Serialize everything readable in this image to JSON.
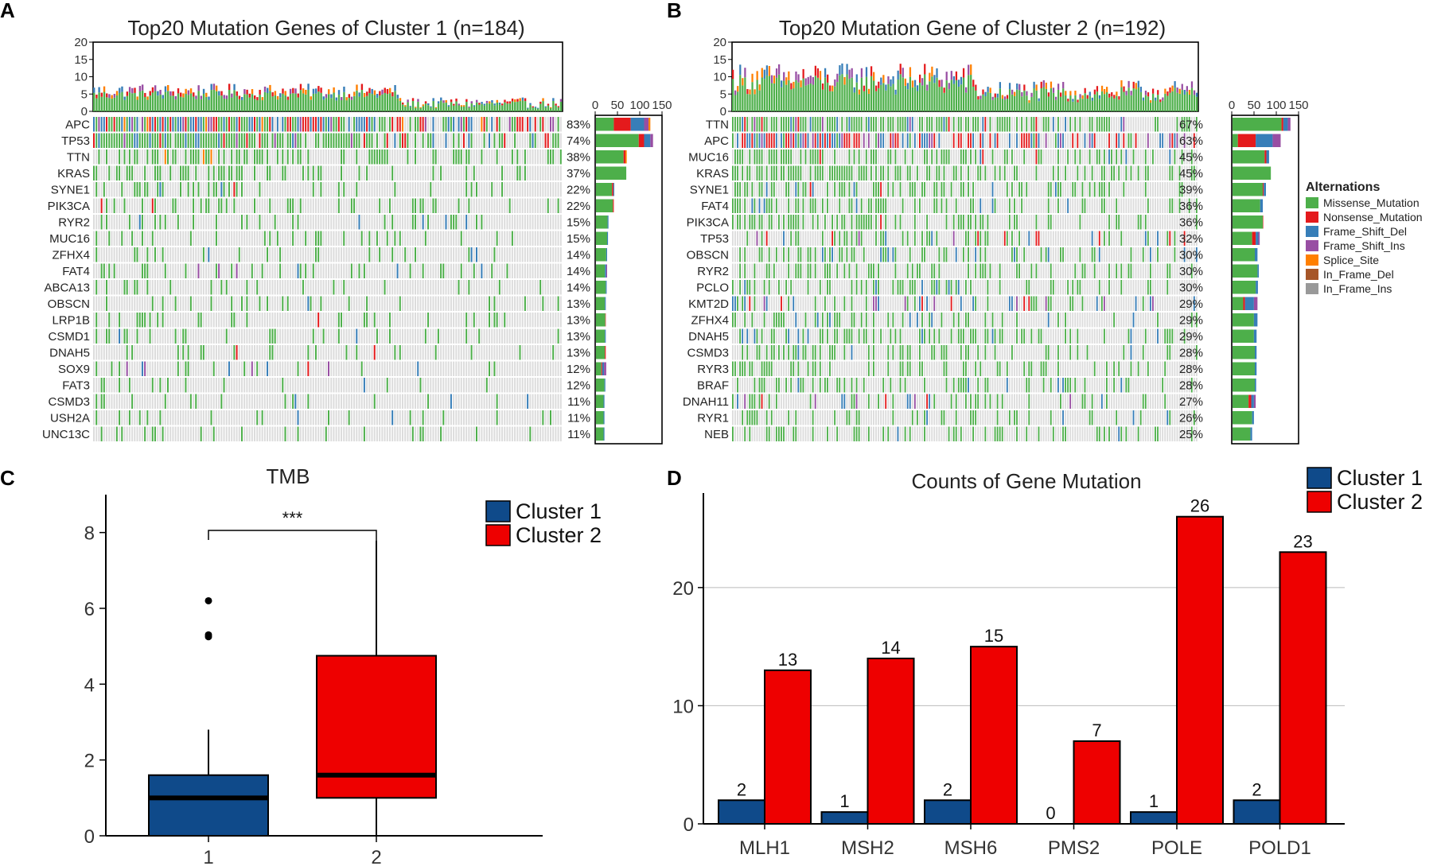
{
  "panels": {
    "a": "A",
    "b": "B",
    "c": "C",
    "d": "D"
  },
  "colors": {
    "Missense_Mutation": "#4DAF4A",
    "Nonsense_Mutation": "#E41A1C",
    "Frame_Shift_Del": "#377EB8",
    "Frame_Shift_Ins": "#984EA3",
    "Splice_Site": "#FF7F00",
    "In_Frame_Del": "#A65628",
    "In_Frame_Ins": "#999999",
    "cluster1": "#0F4A8A",
    "cluster2": "#EE0000"
  },
  "chart_data": [
    {
      "type": "oncoplot",
      "panel": "A",
      "title": "Top20 Mutation Genes of Cluster 1 (n=184)",
      "n_samples": 184,
      "tmb_axis": {
        "ticks": [
          "0",
          "5",
          "10",
          "15",
          "20"
        ],
        "max": 20
      },
      "side_axis": {
        "ticks": [
          "0",
          "50",
          "100",
          "150"
        ],
        "max": 150
      },
      "genes": [
        "APC",
        "TP53",
        "TTN",
        "KRAS",
        "SYNE1",
        "PIK3CA",
        "RYR2",
        "MUC16",
        "ZFHX4",
        "FAT4",
        "ABCA13",
        "OBSCN",
        "LRP1B",
        "CSMD1",
        "DNAH5",
        "SOX9",
        "FAT3",
        "CSMD3",
        "USH2A",
        "UNC13C"
      ],
      "percents": [
        "83%",
        "74%",
        "38%",
        "37%",
        "22%",
        "22%",
        "15%",
        "15%",
        "14%",
        "14%",
        "14%",
        "13%",
        "13%",
        "13%",
        "13%",
        "12%",
        "12%",
        "11%",
        "11%",
        "11%"
      ],
      "side_counts": [
        {
          "Missense_Mutation": 40,
          "Nonsense_Mutation": 38,
          "Frame_Shift_Del": 30,
          "Frame_Shift_Ins": 10,
          "Splice_Site": 4
        },
        {
          "Missense_Mutation": 96,
          "Nonsense_Mutation": 12,
          "Frame_Shift_Del": 14,
          "Frame_Shift_Ins": 6
        },
        {
          "Missense_Mutation": 62,
          "Nonsense_Mutation": 4,
          "Splice_Site": 3
        },
        {
          "Missense_Mutation": 68
        },
        {
          "Missense_Mutation": 36,
          "Nonsense_Mutation": 3,
          "Frame_Shift_Del": 2
        },
        {
          "Missense_Mutation": 38,
          "Nonsense_Mutation": 2
        },
        {
          "Missense_Mutation": 26,
          "Frame_Shift_Del": 2
        },
        {
          "Missense_Mutation": 25,
          "Frame_Shift_Del": 2
        },
        {
          "Missense_Mutation": 23,
          "Frame_Shift_Del": 2
        },
        {
          "Missense_Mutation": 20,
          "Frame_Shift_Del": 3,
          "Frame_Shift_Ins": 2
        },
        {
          "Missense_Mutation": 22,
          "Frame_Shift_Del": 2
        },
        {
          "Missense_Mutation": 20,
          "Frame_Shift_Del": 2
        },
        {
          "Missense_Mutation": 21,
          "Nonsense_Mutation": 1
        },
        {
          "Missense_Mutation": 20,
          "Frame_Shift_Del": 2
        },
        {
          "Missense_Mutation": 20,
          "Nonsense_Mutation": 2
        },
        {
          "Missense_Mutation": 12,
          "Frame_Shift_Ins": 5,
          "Frame_Shift_Del": 4,
          "Nonsense_Mutation": 2
        },
        {
          "Missense_Mutation": 19,
          "Frame_Shift_Del": 2
        },
        {
          "Missense_Mutation": 17,
          "Frame_Shift_Del": 2
        },
        {
          "Missense_Mutation": 17,
          "Frame_Shift_Del": 2
        },
        {
          "Missense_Mutation": 17,
          "Frame_Shift_Del": 2
        }
      ]
    },
    {
      "type": "oncoplot",
      "panel": "B",
      "title": "Top20 Mutation Gene of Cluster 2 (n=192)",
      "n_samples": 192,
      "tmb_axis": {
        "ticks": [
          "0",
          "5",
          "10",
          "15",
          "20"
        ],
        "max": 20
      },
      "side_axis": {
        "ticks": [
          "0",
          "50",
          "100",
          "150"
        ],
        "max": 150
      },
      "genes": [
        "TTN",
        "APC",
        "MUC16",
        "KRAS",
        "SYNE1",
        "FAT4",
        "PIK3CA",
        "TP53",
        "OBSCN",
        "RYR2",
        "PCLO",
        "KMT2D",
        "ZFHX4",
        "DNAH5",
        "CSMD3",
        "RYR3",
        "BRAF",
        "DNAH11",
        "RYR1",
        "NEB"
      ],
      "percents": [
        "67%",
        "63%",
        "45%",
        "45%",
        "39%",
        "36%",
        "36%",
        "32%",
        "30%",
        "30%",
        "30%",
        "29%",
        "29%",
        "29%",
        "28%",
        "28%",
        "28%",
        "27%",
        "26%",
        "25%"
      ],
      "side_counts": [
        {
          "Missense_Mutation": 110,
          "Frame_Shift_Del": 10,
          "Frame_Shift_Ins": 6,
          "Nonsense_Mutation": 4
        },
        {
          "Missense_Mutation": 12,
          "Nonsense_Mutation": 40,
          "Frame_Shift_Del": 38,
          "Frame_Shift_Ins": 18
        },
        {
          "Missense_Mutation": 72,
          "Frame_Shift_Del": 6,
          "Nonsense_Mutation": 4
        },
        {
          "Missense_Mutation": 86
        },
        {
          "Missense_Mutation": 68,
          "Frame_Shift_Del": 5,
          "Nonsense_Mutation": 2
        },
        {
          "Missense_Mutation": 62,
          "Frame_Shift_Del": 6
        },
        {
          "Missense_Mutation": 68,
          "Nonsense_Mutation": 1
        },
        {
          "Missense_Mutation": 44,
          "Nonsense_Mutation": 8,
          "Frame_Shift_Del": 6,
          "Frame_Shift_Ins": 3
        },
        {
          "Missense_Mutation": 50,
          "Frame_Shift_Del": 6
        },
        {
          "Missense_Mutation": 56,
          "Frame_Shift_Del": 3
        },
        {
          "Missense_Mutation": 52,
          "Frame_Shift_Del": 5
        },
        {
          "Missense_Mutation": 24,
          "Frame_Shift_Del": 20,
          "Frame_Shift_Ins": 8,
          "Nonsense_Mutation": 4
        },
        {
          "Missense_Mutation": 48,
          "Frame_Shift_Del": 8
        },
        {
          "Missense_Mutation": 48,
          "Frame_Shift_Del": 6
        },
        {
          "Missense_Mutation": 50,
          "Frame_Shift_Del": 4
        },
        {
          "Missense_Mutation": 50,
          "Frame_Shift_Del": 4
        },
        {
          "Missense_Mutation": 50,
          "Frame_Shift_Del": 3
        },
        {
          "Missense_Mutation": 36,
          "Nonsense_Mutation": 6,
          "Frame_Shift_Del": 6,
          "Frame_Shift_Ins": 4
        },
        {
          "Missense_Mutation": 44,
          "Frame_Shift_Del": 4
        },
        {
          "Missense_Mutation": 40,
          "Frame_Shift_Del": 4
        }
      ],
      "legend_title": "Alternations",
      "legend_items": [
        "Missense_Mutation",
        "Nonsense_Mutation",
        "Frame_Shift_Del",
        "Frame_Shift_Ins",
        "Splice_Site",
        "In_Frame_Del",
        "In_Frame_Ins"
      ]
    },
    {
      "type": "boxplot",
      "panel": "C",
      "title": "TMB",
      "categories": [
        "1",
        "2"
      ],
      "ylim": [
        0,
        9
      ],
      "yticks": [
        "0",
        "2",
        "4",
        "6",
        "8"
      ],
      "significance": "***",
      "legend": [
        "Cluster 1",
        "Cluster 2"
      ],
      "boxes": [
        {
          "name": "Cluster 1",
          "whisker_low": 0,
          "q1": 0,
          "median": 1.0,
          "q3": 1.6,
          "whisker_high": 2.8,
          "outliers": [
            5.25,
            5.3,
            6.2
          ]
        },
        {
          "name": "Cluster 2",
          "whisker_low": 0,
          "q1": 1.0,
          "median": 1.6,
          "q3": 4.75,
          "whisker_high": 7.8,
          "outliers": []
        }
      ]
    },
    {
      "type": "bar",
      "panel": "D",
      "title": "Counts of Gene Mutation",
      "categories": [
        "MLH1",
        "MSH2",
        "MSH6",
        "PMS2",
        "POLE",
        "POLD1"
      ],
      "ylim": [
        0,
        28
      ],
      "yticks": [
        "0",
        "10",
        "20"
      ],
      "legend": [
        "Cluster 1",
        "Cluster 2"
      ],
      "series": [
        {
          "name": "Cluster 1",
          "values": [
            2,
            1,
            2,
            0,
            1,
            2
          ],
          "labels": [
            "2",
            "1",
            "2",
            "0",
            "1",
            "2"
          ]
        },
        {
          "name": "Cluster 2",
          "values": [
            13,
            14,
            15,
            7,
            26,
            23
          ],
          "labels": [
            "13",
            "14",
            "15",
            "7",
            "26",
            "23"
          ]
        }
      ]
    }
  ]
}
